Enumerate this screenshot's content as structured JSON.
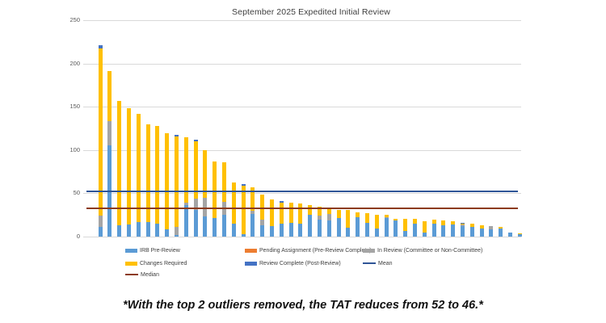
{
  "title": "September 2025 Expedited Initial Review",
  "footnote": "*With the top 2 outliers removed, the TAT reduces from 52 to 46.*",
  "colors": {
    "irb_pre_review": "#5B9BD5",
    "pending_assignment": "#ED7D31",
    "in_review": "#A5A5A5",
    "changes_required": "#FFC000",
    "review_complete": "#4472C4",
    "mean_line": "#2F5597",
    "median_line": "#8C3B1E",
    "gridline": "#d9d9d9"
  },
  "chart_data": {
    "type": "bar",
    "stacked": true,
    "title": "September 2025 Expedited Initial Review",
    "xlabel": "",
    "ylabel": "",
    "ylim": [
      0,
      250
    ],
    "yticks": [
      0,
      50,
      100,
      150,
      200,
      250
    ],
    "grid": true,
    "legend_position": "bottom",
    "series_names": [
      "IRB Pre-Review",
      "Pending Assignment (Pre-Review Complete)",
      "In Review (Committee or Non-Committee)",
      "Changes Required",
      "Review Complete (Post-Review)"
    ],
    "bars_note": "each bar = [IRB Pre-Review, Pending Assignment, In Review, Changes Required, Review Complete]",
    "bars": [
      [
        11,
        0,
        13,
        193,
        4
      ],
      [
        105,
        0,
        28,
        58,
        0
      ],
      [
        13,
        0,
        0,
        144,
        0
      ],
      [
        14,
        0,
        0,
        134,
        0
      ],
      [
        17,
        0,
        0,
        125,
        0
      ],
      [
        17,
        0,
        0,
        113,
        0
      ],
      [
        15,
        0,
        0,
        113,
        0
      ],
      [
        8,
        0,
        0,
        111,
        0
      ],
      [
        2,
        0,
        9,
        105,
        2
      ],
      [
        36,
        0,
        3,
        76,
        0
      ],
      [
        31,
        0,
        13,
        66,
        2
      ],
      [
        23,
        0,
        22,
        55,
        0
      ],
      [
        21,
        0,
        0,
        66,
        0
      ],
      [
        25,
        0,
        15,
        46,
        0
      ],
      [
        15,
        0,
        0,
        48,
        0
      ],
      [
        3,
        0,
        0,
        56,
        2
      ],
      [
        26,
        0,
        4,
        27,
        0
      ],
      [
        13,
        0,
        7,
        29,
        0
      ],
      [
        12,
        0,
        0,
        31,
        0
      ],
      [
        15,
        0,
        0,
        24,
        2
      ],
      [
        16,
        0,
        0,
        23,
        0
      ],
      [
        15,
        0,
        0,
        23,
        0
      ],
      [
        25,
        0,
        0,
        11,
        0
      ],
      [
        20,
        0,
        4,
        11,
        0
      ],
      [
        19,
        0,
        7,
        8,
        0
      ],
      [
        21,
        0,
        0,
        10,
        0
      ],
      [
        10,
        0,
        0,
        21,
        0
      ],
      [
        22,
        0,
        0,
        6,
        0
      ],
      [
        16,
        0,
        0,
        11,
        0
      ],
      [
        9,
        0,
        0,
        16,
        0
      ],
      [
        21,
        0,
        1,
        3,
        0
      ],
      [
        19,
        0,
        0,
        2,
        0
      ],
      [
        7,
        0,
        0,
        14,
        0
      ],
      [
        15,
        0,
        0,
        6,
        0
      ],
      [
        5,
        0,
        0,
        13,
        0
      ],
      [
        15,
        0,
        0,
        5,
        0
      ],
      [
        13,
        0,
        0,
        6,
        0
      ],
      [
        14,
        0,
        0,
        4,
        0
      ],
      [
        12,
        0,
        2,
        1,
        1
      ],
      [
        11,
        0,
        0,
        4,
        0
      ],
      [
        9,
        0,
        0,
        4,
        0
      ],
      [
        8,
        0,
        4,
        0,
        0
      ],
      [
        9,
        0,
        0,
        2,
        0
      ],
      [
        5,
        0,
        0,
        0,
        0
      ],
      [
        3,
        0,
        0,
        1,
        0
      ]
    ],
    "mean": 52,
    "median": 33
  },
  "legend": {
    "rows": [
      [
        {
          "label": "IRB Pre-Review",
          "type": "bar",
          "color": "#5B9BD5"
        },
        {
          "label": "Pending Assignment (Pre-Review Complete)",
          "type": "bar",
          "color": "#ED7D31"
        },
        {
          "label": "In Review (Committee or Non-Committee)",
          "type": "bar",
          "color": "#A5A5A5"
        }
      ],
      [
        {
          "label": "Changes Required",
          "type": "bar",
          "color": "#FFC000"
        },
        {
          "label": "Review Complete (Post-Review)",
          "type": "bar",
          "color": "#4472C4"
        },
        {
          "label": "Mean",
          "type": "line",
          "color": "#2F5597"
        }
      ],
      [
        {
          "label": "Median",
          "type": "line",
          "color": "#8C3B1E"
        }
      ]
    ]
  },
  "yaxis_tick_labels": [
    "0",
    "50",
    "100",
    "150",
    "200",
    "250"
  ]
}
